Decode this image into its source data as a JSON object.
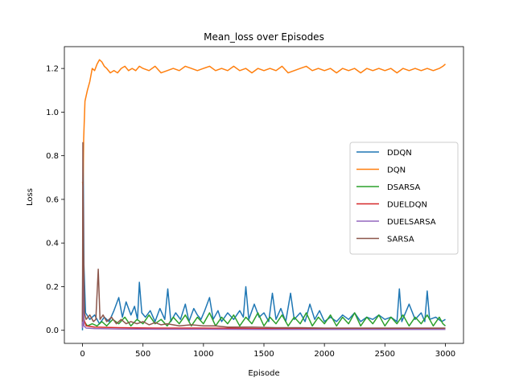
{
  "chart_data": {
    "type": "line",
    "title": "Mean_loss over Episodes",
    "xlabel": "Episode",
    "ylabel": "Loss",
    "xlim": [
      -150,
      3150
    ],
    "ylim": [
      -0.06,
      1.3
    ],
    "xticks": [
      0,
      500,
      1000,
      1500,
      2000,
      2500,
      3000
    ],
    "yticks": [
      0.0,
      0.2,
      0.4,
      0.6,
      0.8,
      1.0,
      1.2
    ],
    "xtick_labels": [
      "0",
      "500",
      "1000",
      "1500",
      "2000",
      "2500",
      "3000"
    ],
    "ytick_labels": [
      "0.0",
      "0.2",
      "0.4",
      "0.6",
      "0.8",
      "1.0",
      "1.2"
    ],
    "grid": false,
    "legend_position": "center-right",
    "series": [
      {
        "name": "DDQN",
        "color": "#1f77b4",
        "points": [
          [
            0,
            0.0
          ],
          [
            5,
            0.85
          ],
          [
            12,
            0.3
          ],
          [
            25,
            0.08
          ],
          [
            60,
            0.05
          ],
          [
            100,
            0.07
          ],
          [
            140,
            0.03
          ],
          [
            180,
            0.06
          ],
          [
            220,
            0.04
          ],
          [
            260,
            0.09
          ],
          [
            300,
            0.15
          ],
          [
            330,
            0.06
          ],
          [
            360,
            0.13
          ],
          [
            400,
            0.07
          ],
          [
            430,
            0.11
          ],
          [
            455,
            0.05
          ],
          [
            470,
            0.22
          ],
          [
            490,
            0.08
          ],
          [
            520,
            0.06
          ],
          [
            560,
            0.09
          ],
          [
            600,
            0.04
          ],
          [
            640,
            0.1
          ],
          [
            680,
            0.05
          ],
          [
            705,
            0.19
          ],
          [
            730,
            0.04
          ],
          [
            770,
            0.08
          ],
          [
            810,
            0.05
          ],
          [
            850,
            0.12
          ],
          [
            880,
            0.04
          ],
          [
            920,
            0.1
          ],
          [
            950,
            0.07
          ],
          [
            980,
            0.05
          ],
          [
            1010,
            0.09
          ],
          [
            1050,
            0.15
          ],
          [
            1080,
            0.05
          ],
          [
            1120,
            0.09
          ],
          [
            1150,
            0.04
          ],
          [
            1200,
            0.08
          ],
          [
            1250,
            0.05
          ],
          [
            1300,
            0.09
          ],
          [
            1330,
            0.06
          ],
          [
            1350,
            0.2
          ],
          [
            1375,
            0.05
          ],
          [
            1420,
            0.12
          ],
          [
            1460,
            0.06
          ],
          [
            1500,
            0.08
          ],
          [
            1540,
            0.04
          ],
          [
            1570,
            0.17
          ],
          [
            1600,
            0.05
          ],
          [
            1640,
            0.1
          ],
          [
            1680,
            0.04
          ],
          [
            1720,
            0.17
          ],
          [
            1750,
            0.05
          ],
          [
            1800,
            0.08
          ],
          [
            1840,
            0.04
          ],
          [
            1880,
            0.12
          ],
          [
            1920,
            0.05
          ],
          [
            1960,
            0.09
          ],
          [
            2000,
            0.04
          ],
          [
            2050,
            0.06
          ],
          [
            2100,
            0.04
          ],
          [
            2150,
            0.07
          ],
          [
            2200,
            0.05
          ],
          [
            2250,
            0.08
          ],
          [
            2300,
            0.04
          ],
          [
            2350,
            0.06
          ],
          [
            2400,
            0.05
          ],
          [
            2450,
            0.07
          ],
          [
            2500,
            0.05
          ],
          [
            2550,
            0.06
          ],
          [
            2600,
            0.04
          ],
          [
            2620,
            0.19
          ],
          [
            2640,
            0.04
          ],
          [
            2700,
            0.12
          ],
          [
            2750,
            0.05
          ],
          [
            2800,
            0.08
          ],
          [
            2830,
            0.04
          ],
          [
            2850,
            0.18
          ],
          [
            2870,
            0.05
          ],
          [
            2920,
            0.06
          ],
          [
            2970,
            0.04
          ],
          [
            3000,
            0.05
          ]
        ]
      },
      {
        "name": "DQN",
        "color": "#ff7f0e",
        "points": [
          [
            0,
            0.68
          ],
          [
            5,
            0.66
          ],
          [
            10,
            0.88
          ],
          [
            20,
            1.05
          ],
          [
            40,
            1.1
          ],
          [
            60,
            1.14
          ],
          [
            80,
            1.2
          ],
          [
            100,
            1.19
          ],
          [
            120,
            1.22
          ],
          [
            140,
            1.24
          ],
          [
            160,
            1.23
          ],
          [
            180,
            1.21
          ],
          [
            200,
            1.2
          ],
          [
            230,
            1.18
          ],
          [
            260,
            1.19
          ],
          [
            290,
            1.18
          ],
          [
            320,
            1.2
          ],
          [
            350,
            1.21
          ],
          [
            380,
            1.19
          ],
          [
            410,
            1.2
          ],
          [
            440,
            1.19
          ],
          [
            470,
            1.21
          ],
          [
            500,
            1.2
          ],
          [
            550,
            1.19
          ],
          [
            600,
            1.21
          ],
          [
            650,
            1.18
          ],
          [
            700,
            1.19
          ],
          [
            750,
            1.2
          ],
          [
            800,
            1.19
          ],
          [
            850,
            1.21
          ],
          [
            900,
            1.2
          ],
          [
            950,
            1.19
          ],
          [
            1000,
            1.2
          ],
          [
            1050,
            1.21
          ],
          [
            1100,
            1.19
          ],
          [
            1150,
            1.2
          ],
          [
            1200,
            1.19
          ],
          [
            1250,
            1.21
          ],
          [
            1300,
            1.19
          ],
          [
            1350,
            1.2
          ],
          [
            1400,
            1.18
          ],
          [
            1450,
            1.2
          ],
          [
            1500,
            1.19
          ],
          [
            1550,
            1.2
          ],
          [
            1600,
            1.19
          ],
          [
            1650,
            1.21
          ],
          [
            1700,
            1.18
          ],
          [
            1750,
            1.19
          ],
          [
            1800,
            1.2
          ],
          [
            1850,
            1.21
          ],
          [
            1900,
            1.19
          ],
          [
            1950,
            1.2
          ],
          [
            2000,
            1.19
          ],
          [
            2050,
            1.2
          ],
          [
            2100,
            1.18
          ],
          [
            2150,
            1.2
          ],
          [
            2200,
            1.19
          ],
          [
            2250,
            1.2
          ],
          [
            2300,
            1.18
          ],
          [
            2350,
            1.2
          ],
          [
            2400,
            1.19
          ],
          [
            2450,
            1.2
          ],
          [
            2500,
            1.19
          ],
          [
            2550,
            1.2
          ],
          [
            2600,
            1.18
          ],
          [
            2650,
            1.2
          ],
          [
            2700,
            1.19
          ],
          [
            2750,
            1.2
          ],
          [
            2800,
            1.19
          ],
          [
            2850,
            1.2
          ],
          [
            2900,
            1.19
          ],
          [
            2950,
            1.2
          ],
          [
            2980,
            1.21
          ],
          [
            3000,
            1.22
          ]
        ]
      },
      {
        "name": "DSARSA",
        "color": "#2ca02c",
        "points": [
          [
            0,
            0.02
          ],
          [
            5,
            0.12
          ],
          [
            15,
            0.04
          ],
          [
            40,
            0.02
          ],
          [
            80,
            0.03
          ],
          [
            120,
            0.02
          ],
          [
            160,
            0.04
          ],
          [
            200,
            0.02
          ],
          [
            250,
            0.05
          ],
          [
            300,
            0.03
          ],
          [
            350,
            0.06
          ],
          [
            400,
            0.02
          ],
          [
            450,
            0.05
          ],
          [
            500,
            0.03
          ],
          [
            550,
            0.07
          ],
          [
            600,
            0.03
          ],
          [
            650,
            0.05
          ],
          [
            700,
            0.02
          ],
          [
            750,
            0.06
          ],
          [
            800,
            0.03
          ],
          [
            850,
            0.07
          ],
          [
            900,
            0.02
          ],
          [
            950,
            0.06
          ],
          [
            1000,
            0.03
          ],
          [
            1050,
            0.08
          ],
          [
            1100,
            0.02
          ],
          [
            1150,
            0.06
          ],
          [
            1200,
            0.03
          ],
          [
            1250,
            0.07
          ],
          [
            1300,
            0.02
          ],
          [
            1350,
            0.06
          ],
          [
            1400,
            0.03
          ],
          [
            1450,
            0.08
          ],
          [
            1500,
            0.02
          ],
          [
            1550,
            0.06
          ],
          [
            1600,
            0.03
          ],
          [
            1650,
            0.07
          ],
          [
            1700,
            0.02
          ],
          [
            1750,
            0.06
          ],
          [
            1800,
            0.03
          ],
          [
            1850,
            0.08
          ],
          [
            1900,
            0.02
          ],
          [
            1950,
            0.06
          ],
          [
            2000,
            0.03
          ],
          [
            2050,
            0.07
          ],
          [
            2100,
            0.02
          ],
          [
            2150,
            0.06
          ],
          [
            2200,
            0.03
          ],
          [
            2250,
            0.08
          ],
          [
            2300,
            0.02
          ],
          [
            2350,
            0.06
          ],
          [
            2400,
            0.03
          ],
          [
            2450,
            0.07
          ],
          [
            2500,
            0.02
          ],
          [
            2550,
            0.06
          ],
          [
            2600,
            0.03
          ],
          [
            2650,
            0.07
          ],
          [
            2700,
            0.02
          ],
          [
            2750,
            0.06
          ],
          [
            2800,
            0.03
          ],
          [
            2850,
            0.07
          ],
          [
            2900,
            0.02
          ],
          [
            2950,
            0.06
          ],
          [
            2980,
            0.03
          ],
          [
            3000,
            0.02
          ]
        ]
      },
      {
        "name": "DUELDQN",
        "color": "#d62728",
        "points": [
          [
            0,
            0.02
          ],
          [
            5,
            0.6
          ],
          [
            12,
            0.05
          ],
          [
            30,
            0.02
          ],
          [
            100,
            0.015
          ],
          [
            300,
            0.012
          ],
          [
            600,
            0.01
          ],
          [
            1000,
            0.01
          ],
          [
            1500,
            0.008
          ],
          [
            2000,
            0.008
          ],
          [
            2500,
            0.007
          ],
          [
            3000,
            0.007
          ]
        ]
      },
      {
        "name": "DUELSARSA",
        "color": "#9467bd",
        "points": [
          [
            0,
            0.01
          ],
          [
            5,
            0.35
          ],
          [
            12,
            0.02
          ],
          [
            30,
            0.01
          ],
          [
            100,
            0.008
          ],
          [
            300,
            0.006
          ],
          [
            600,
            0.005
          ],
          [
            1000,
            0.005
          ],
          [
            1500,
            0.004
          ],
          [
            2000,
            0.004
          ],
          [
            2500,
            0.004
          ],
          [
            3000,
            0.004
          ]
        ]
      },
      {
        "name": "SARSA",
        "color": "#8c564b",
        "points": [
          [
            0,
            0.04
          ],
          [
            3,
            0.86
          ],
          [
            8,
            0.4
          ],
          [
            15,
            0.08
          ],
          [
            30,
            0.05
          ],
          [
            60,
            0.07
          ],
          [
            90,
            0.04
          ],
          [
            110,
            0.05
          ],
          [
            130,
            0.28
          ],
          [
            145,
            0.05
          ],
          [
            170,
            0.07
          ],
          [
            200,
            0.04
          ],
          [
            240,
            0.06
          ],
          [
            280,
            0.03
          ],
          [
            320,
            0.05
          ],
          [
            360,
            0.03
          ],
          [
            400,
            0.04
          ],
          [
            450,
            0.03
          ],
          [
            500,
            0.04
          ],
          [
            550,
            0.025
          ],
          [
            600,
            0.035
          ],
          [
            650,
            0.025
          ],
          [
            700,
            0.03
          ],
          [
            800,
            0.02
          ],
          [
            900,
            0.025
          ],
          [
            1000,
            0.02
          ],
          [
            1100,
            0.02
          ],
          [
            1200,
            0.015
          ],
          [
            1400,
            0.015
          ],
          [
            1600,
            0.012
          ],
          [
            1800,
            0.012
          ],
          [
            2000,
            0.01
          ],
          [
            2300,
            0.01
          ],
          [
            2600,
            0.01
          ],
          [
            3000,
            0.01
          ]
        ]
      }
    ]
  }
}
